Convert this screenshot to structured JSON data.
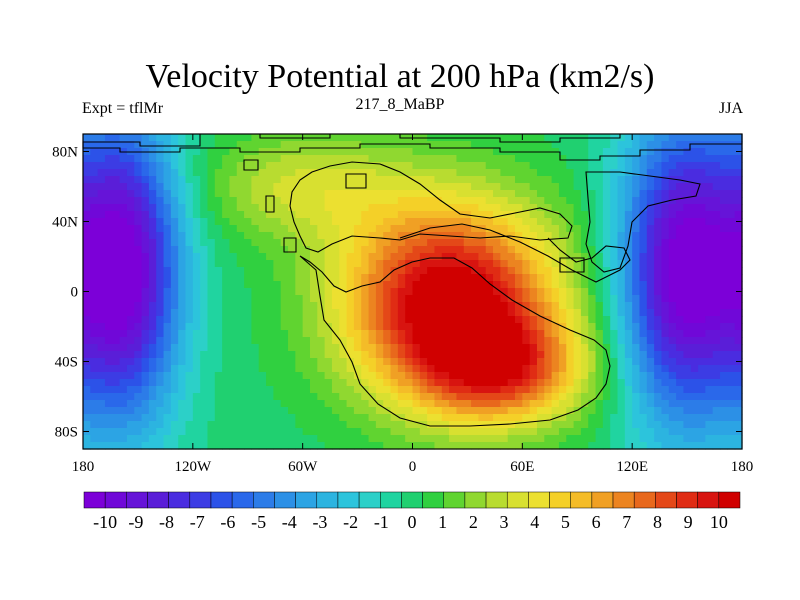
{
  "title": "Velocity Potential at 200 hPa (km2/s)",
  "left_label": "Expt = tflMr",
  "center_label": "217_8_MaBP",
  "right_label": "JJA",
  "x_ticks": [
    {
      "lon": -180,
      "label": "180"
    },
    {
      "lon": -120,
      "label": "120W"
    },
    {
      "lon": -60,
      "label": "60W"
    },
    {
      "lon": 0,
      "label": "0"
    },
    {
      "lon": 60,
      "label": "60E"
    },
    {
      "lon": 120,
      "label": "120E"
    },
    {
      "lon": 180,
      "label": "180"
    }
  ],
  "y_ticks": [
    {
      "lat": 80,
      "label": "80N"
    },
    {
      "lat": 40,
      "label": "40N"
    },
    {
      "lat": 0,
      "label": "0"
    },
    {
      "lat": -40,
      "label": "40S"
    },
    {
      "lat": -80,
      "label": "80S"
    }
  ],
  "colorbar": {
    "colors": [
      "#7c00d8",
      "#7008d8",
      "#6614d8",
      "#5a1ed8",
      "#4a2ce0",
      "#3c3ce4",
      "#2c52e8",
      "#2a68ea",
      "#2c7ce8",
      "#2c90e6",
      "#2ca4e4",
      "#2cb4e0",
      "#2cc4dc",
      "#2cd0c8",
      "#20d4a0",
      "#20d070",
      "#30d040",
      "#60d430",
      "#90d830",
      "#b8dc30",
      "#d8e030",
      "#ece030",
      "#f4d028",
      "#f4bc28",
      "#f0a024",
      "#ec8420",
      "#e8681c",
      "#e44818",
      "#e02c14",
      "#d81410",
      "#d00000"
    ],
    "labels": [
      "-10",
      "-9",
      "-8",
      "-7",
      "-6",
      "-5",
      "-4",
      "-3",
      "-2",
      "-1",
      "0",
      "1",
      "2",
      "3",
      "4",
      "5",
      "6",
      "7",
      "8",
      "9",
      "10"
    ]
  },
  "field_centers": [
    {
      "lon": -158,
      "lat": 12,
      "value": -10.5,
      "spread_lon": 22,
      "spread_lat": 60
    },
    {
      "lon": 148,
      "lat": 12,
      "value": -10.5,
      "spread_lon": 24,
      "spread_lat": 60
    },
    {
      "lon": 20,
      "lat": -5,
      "value": 11,
      "spread_lon": 42,
      "spread_lat": 40
    },
    {
      "lon": 50,
      "lat": -45,
      "value": 6,
      "spread_lon": 32,
      "spread_lat": 22
    },
    {
      "lon": -60,
      "lat": 60,
      "value": 3,
      "spread_lon": 40,
      "spread_lat": 22
    }
  ]
}
